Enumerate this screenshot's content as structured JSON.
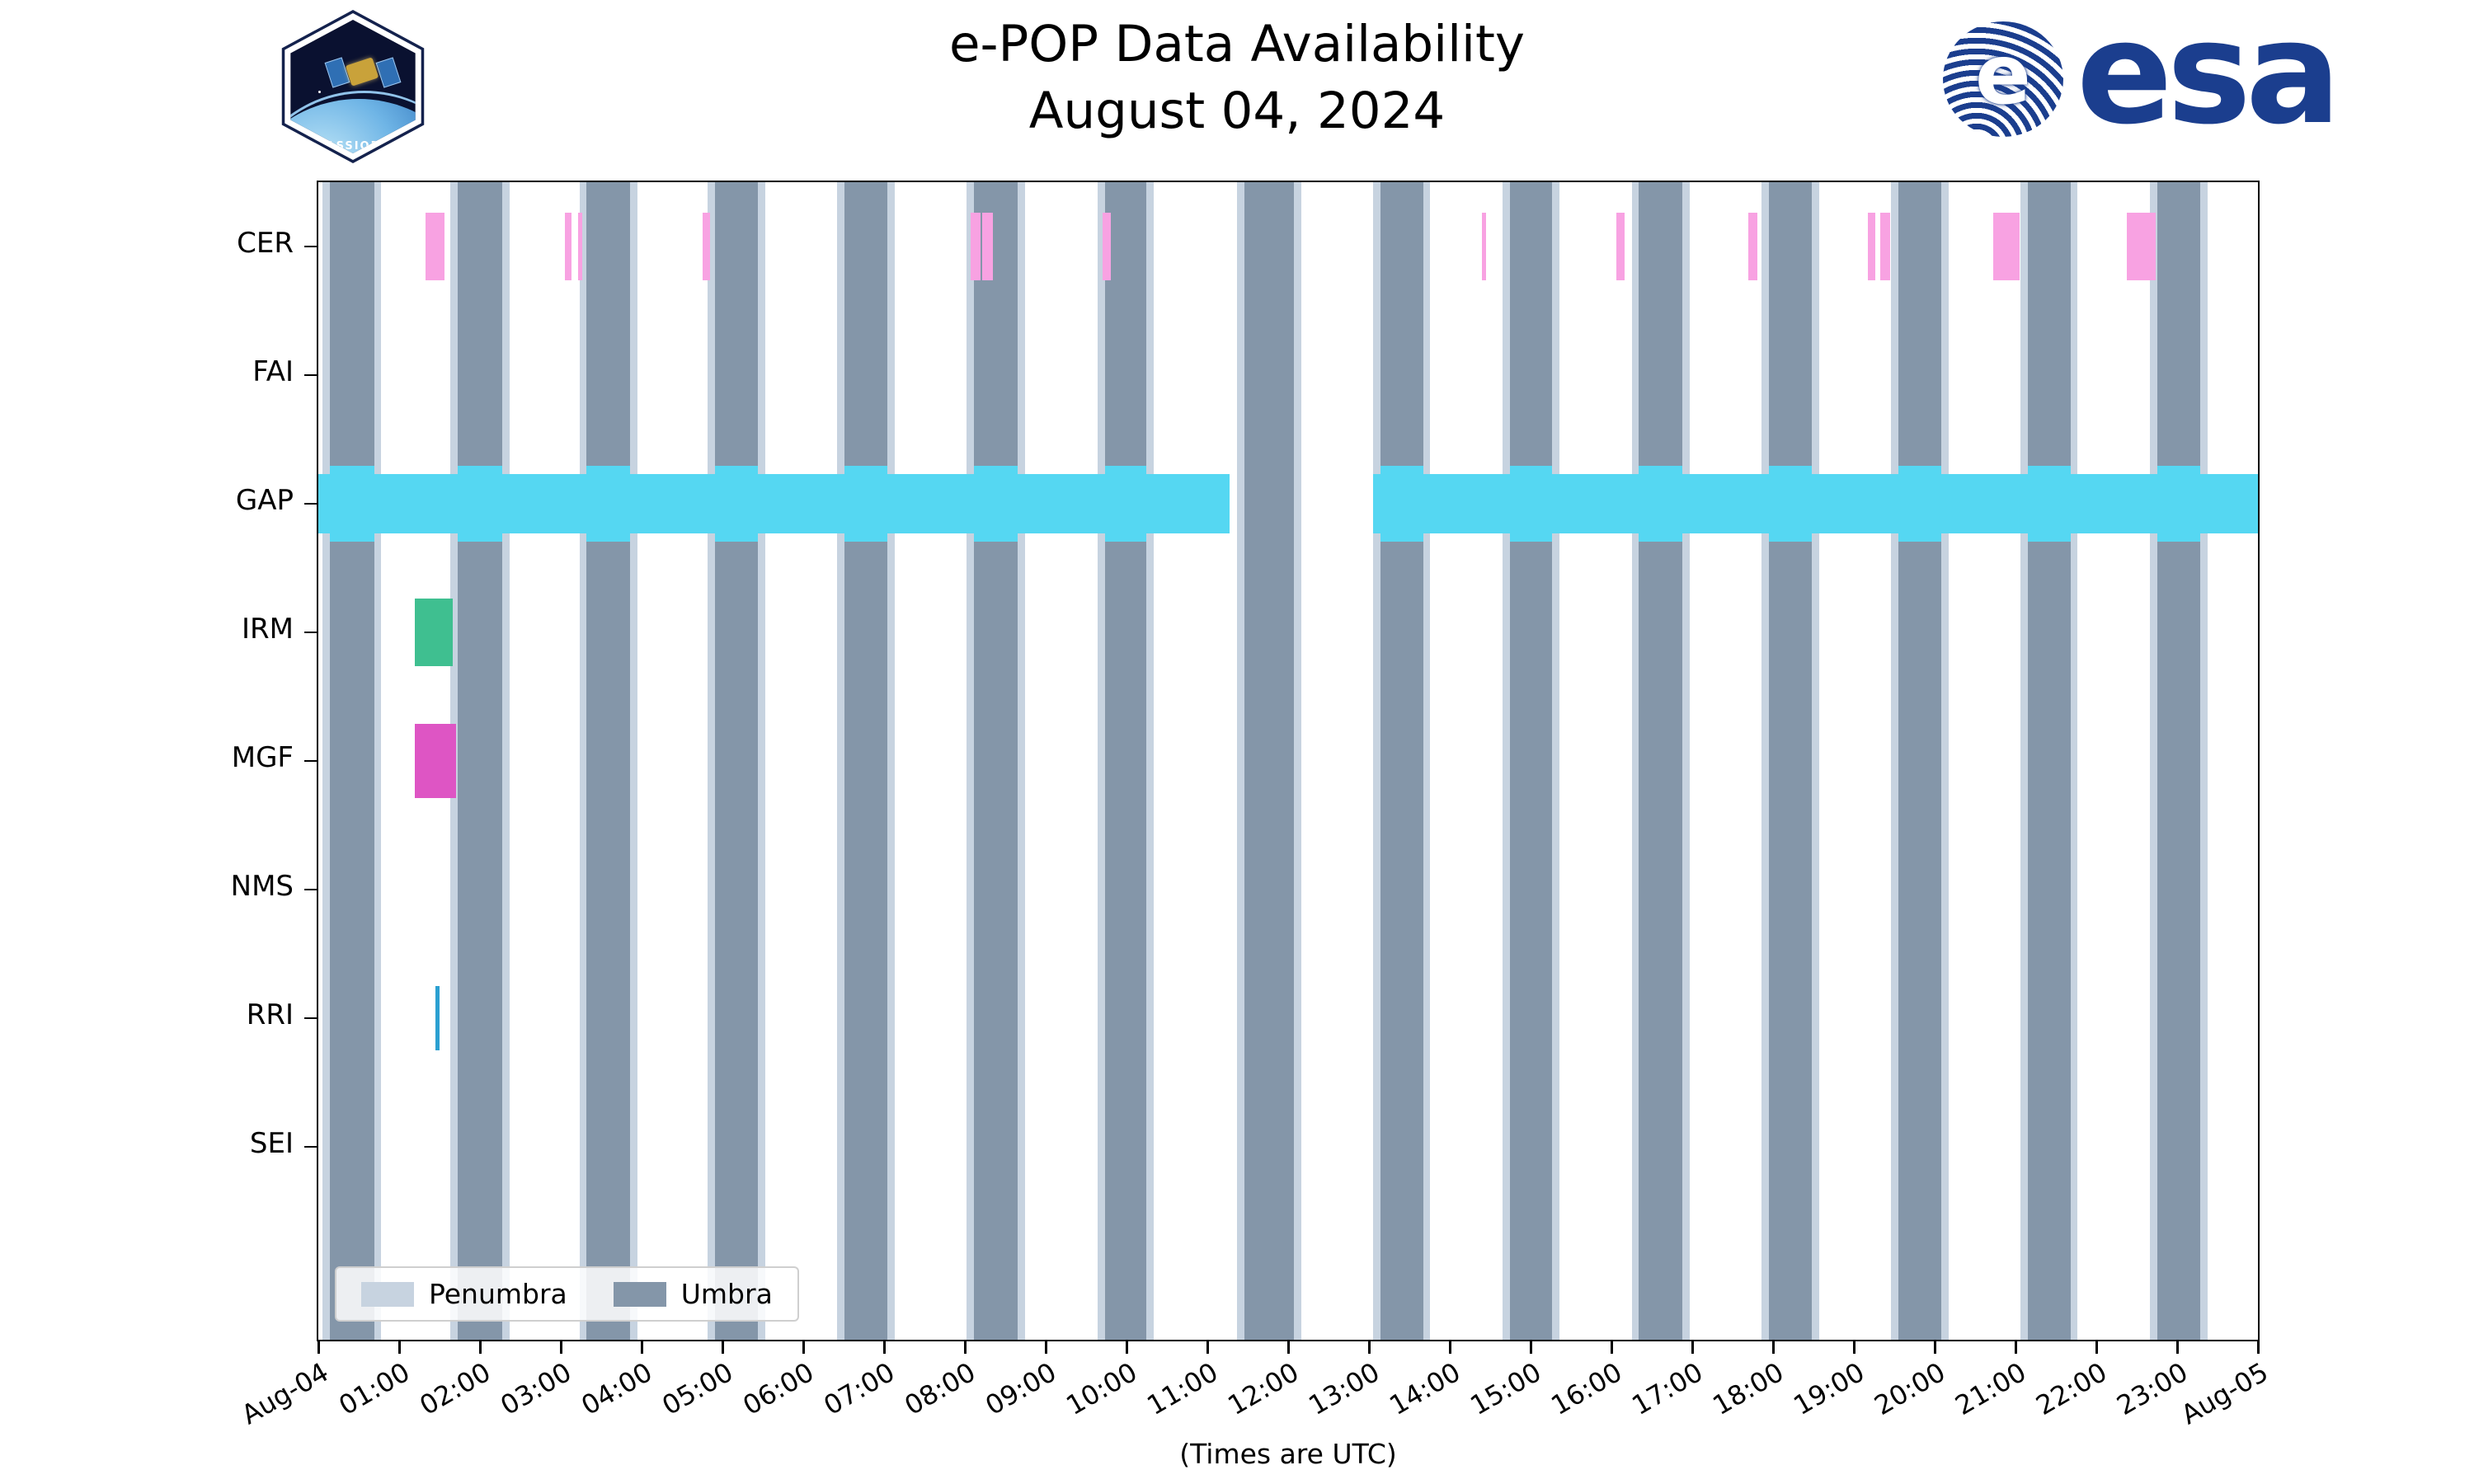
{
  "branding": {
    "patch_label": "CASSIOPE",
    "esa_wordmark": "esa"
  },
  "chart_data": {
    "type": "gantt-timeline",
    "title": "e-POP Data Availability",
    "subtitle": "August 04, 2024",
    "xlabel": "(Times are UTC)",
    "x_range_hours": [
      0,
      24
    ],
    "x_tick_hours": [
      0,
      1,
      2,
      3,
      4,
      5,
      6,
      7,
      8,
      9,
      10,
      11,
      12,
      13,
      14,
      15,
      16,
      17,
      18,
      19,
      20,
      21,
      22,
      23,
      24
    ],
    "x_tick_labels": [
      "Aug-04",
      "01:00",
      "02:00",
      "03:00",
      "04:00",
      "05:00",
      "06:00",
      "07:00",
      "08:00",
      "09:00",
      "10:00",
      "11:00",
      "12:00",
      "13:00",
      "14:00",
      "15:00",
      "16:00",
      "17:00",
      "18:00",
      "19:00",
      "20:00",
      "21:00",
      "22:00",
      "23:00",
      "Aug-05"
    ],
    "rows": [
      "CER",
      "FAI",
      "GAP",
      "IRM",
      "MGF",
      "NMS",
      "RRI",
      "SEI"
    ],
    "colors": {
      "penumbra": "#c7d3e0",
      "umbra": "#8496a9",
      "spine": "#000000"
    },
    "row_styles": {
      "CER": {
        "color": "#f8a2e2",
        "height": 82
      },
      "GAP": {
        "color": "#55d7f2",
        "height": 72,
        "tall_height": 92
      },
      "IRM": {
        "color": "#3fbf90",
        "height": 82
      },
      "MGF": {
        "color": "#de55c4",
        "height": 90
      },
      "RRI": {
        "color": "#2ba0d1",
        "height": 78
      }
    },
    "penumbra_pad_hours": 0.09,
    "umbra_intervals_hours": [
      [
        0.14,
        0.69
      ],
      [
        1.72,
        2.28
      ],
      [
        3.32,
        3.86
      ],
      [
        4.91,
        5.44
      ],
      [
        6.51,
        7.04
      ],
      [
        8.11,
        8.65
      ],
      [
        9.73,
        10.25
      ],
      [
        11.46,
        12.07
      ],
      [
        13.14,
        13.67
      ],
      [
        14.74,
        15.27
      ],
      [
        16.34,
        16.88
      ],
      [
        17.95,
        18.48
      ],
      [
        19.55,
        20.08
      ],
      [
        21.15,
        21.68
      ],
      [
        22.75,
        23.29
      ]
    ],
    "series": {
      "CER": [
        [
          1.33,
          1.56
        ],
        [
          3.05,
          3.13
        ],
        [
          3.21,
          3.27
        ],
        [
          4.75,
          4.85
        ],
        [
          8.07,
          8.19
        ],
        [
          8.21,
          8.35
        ],
        [
          9.7,
          9.81
        ],
        [
          14.4,
          14.45
        ],
        [
          16.06,
          16.16
        ],
        [
          17.69,
          17.81
        ],
        [
          19.17,
          19.27
        ],
        [
          19.33,
          19.45
        ],
        [
          20.72,
          21.05
        ],
        [
          22.38,
          22.73
        ]
      ],
      "FAI": [],
      "GAP": [
        [
          0.0,
          11.28
        ],
        [
          13.05,
          24.0
        ]
      ],
      "IRM": [
        [
          1.19,
          1.66
        ]
      ],
      "MGF": [
        [
          1.19,
          1.7
        ]
      ],
      "NMS": [],
      "RRI": [
        [
          1.45,
          1.5
        ]
      ],
      "SEI": []
    },
    "legend": [
      {
        "label": "Penumbra",
        "color_key": "penumbra"
      },
      {
        "label": "Umbra",
        "color_key": "umbra"
      }
    ]
  }
}
